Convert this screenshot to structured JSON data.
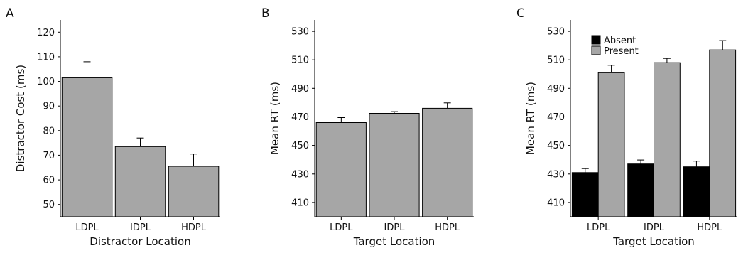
{
  "figure": {
    "background": "#ffffff",
    "axis_color": "#000000",
    "bar_colors": {
      "gray": "#a6a6a6",
      "black": "#000000"
    }
  },
  "chart_data": [
    {
      "panel": "A",
      "type": "bar",
      "categories": [
        "LDPL",
        "IDPL",
        "HDPL"
      ],
      "series": [
        {
          "values": [
            101.5,
            73.5,
            65.5
          ],
          "errors": [
            6.5,
            3.5,
            5.0
          ],
          "color": "#a6a6a6"
        }
      ],
      "xlabel": "Distractor Location",
      "ylabel": "Distractor Cost (ms)",
      "ylim": [
        45,
        125
      ],
      "yticks": [
        50,
        60,
        70,
        80,
        90,
        100,
        110,
        120
      ],
      "grid": false,
      "legend": null
    },
    {
      "panel": "B",
      "type": "bar",
      "categories": [
        "LDPL",
        "IDPL",
        "HDPL"
      ],
      "series": [
        {
          "values": [
            466,
            472.5,
            476
          ],
          "errors": [
            3.5,
            1.2,
            3.8
          ],
          "color": "#a6a6a6"
        }
      ],
      "xlabel": "Target Location",
      "ylabel": "Mean RT (ms)",
      "ylim": [
        400,
        538
      ],
      "yticks": [
        410,
        430,
        450,
        470,
        490,
        510,
        530
      ],
      "grid": false,
      "legend": null
    },
    {
      "panel": "C",
      "type": "bar",
      "categories": [
        "LDPL",
        "IDPL",
        "HDPL"
      ],
      "series": [
        {
          "name": "Absent",
          "values": [
            431,
            437,
            435
          ],
          "errors": [
            2.8,
            2.8,
            4.0
          ],
          "color": "#000000"
        },
        {
          "name": "Present",
          "values": [
            501,
            508,
            517
          ],
          "errors": [
            5.2,
            3.0,
            6.5
          ],
          "color": "#a6a6a6"
        }
      ],
      "xlabel": "Target Location",
      "ylabel": "Mean RT (ms)",
      "ylim": [
        400,
        538
      ],
      "yticks": [
        410,
        430,
        450,
        470,
        490,
        510,
        530
      ],
      "grid": false,
      "legend": "top-left"
    }
  ]
}
